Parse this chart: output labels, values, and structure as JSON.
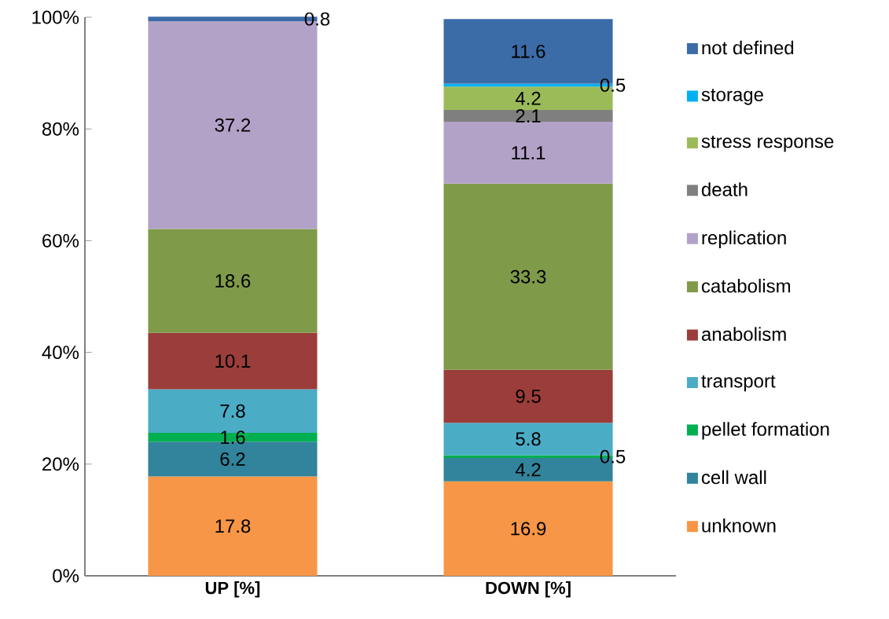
{
  "chart_data": {
    "type": "bar",
    "stacked": true,
    "categories": [
      "UP [%]",
      "DOWN [%]"
    ],
    "ylim": [
      0,
      100
    ],
    "yticks": [
      {
        "value": 0,
        "label": "0%"
      },
      {
        "value": 20,
        "label": "20%"
      },
      {
        "value": 40,
        "label": "40%"
      },
      {
        "value": 60,
        "label": "60%"
      },
      {
        "value": 80,
        "label": "80%"
      },
      {
        "value": 100,
        "label": "100%"
      }
    ],
    "grid": false,
    "legend": "right",
    "data_labels": true,
    "series": [
      {
        "name": "unknown",
        "color": "#f79646",
        "values": [
          17.8,
          16.9
        ]
      },
      {
        "name": "cell wall",
        "color": "#31849b",
        "values": [
          6.2,
          4.2
        ]
      },
      {
        "name": "pellet formation",
        "color": "#00b050",
        "values": [
          1.6,
          0.5
        ]
      },
      {
        "name": "transport",
        "color": "#4bacc6",
        "values": [
          7.8,
          5.8
        ]
      },
      {
        "name": "anabolism",
        "color": "#9b3d3a",
        "values": [
          10.1,
          9.5
        ]
      },
      {
        "name": "catabolism",
        "color": "#7f9a48",
        "values": [
          18.6,
          33.3
        ]
      },
      {
        "name": "replication",
        "color": "#b3a2c7",
        "values": [
          37.2,
          11.1
        ]
      },
      {
        "name": "death",
        "color": "#7f7f7f",
        "values": [
          null,
          2.1
        ]
      },
      {
        "name": "stress response",
        "color": "#9bbb59",
        "values": [
          null,
          4.2
        ]
      },
      {
        "name": "storage",
        "color": "#00b0f0",
        "values": [
          null,
          0.5
        ]
      },
      {
        "name": "not defined",
        "color": "#3c6ca8",
        "values": [
          0.8,
          11.6
        ]
      }
    ]
  }
}
